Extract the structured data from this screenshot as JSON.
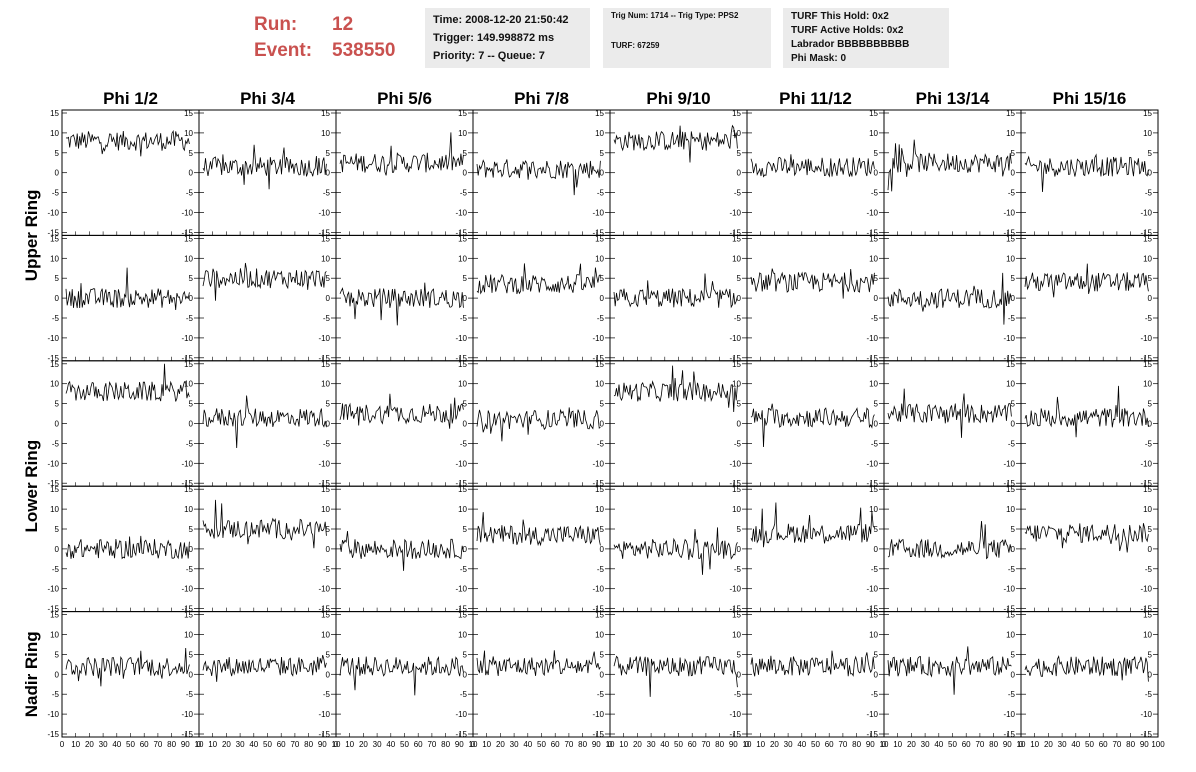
{
  "header": {
    "run_label": "Run:",
    "run_value": "12",
    "event_label": "Event:",
    "event_value": "538550",
    "time": "Time: 2008-12-20 21:50:42",
    "trigger": "Trigger: 149.998872 ms",
    "priority": "Priority: 7 -- Queue: 7",
    "trig_num": "Trig Num: 1714 -- Trig Type: PPS2",
    "turf": "TURF: 67259",
    "turf_this_hold": "TURF This Hold: 0x2",
    "turf_active_holds": "TURF Active Holds: 0x2",
    "labrador": "Labrador BBBBBBBBBB",
    "phi_mask": "Phi Mask: 0"
  },
  "colors": {
    "header_red": "#c9514f",
    "box_bg": "#ebebeb",
    "trace": "#000000"
  },
  "chart_data": {
    "type": "line",
    "columns": [
      "Phi 1/2",
      "Phi 3/4",
      "Phi 5/6",
      "Phi 7/8",
      "Phi 9/10",
      "Phi 11/12",
      "Phi 13/14",
      "Phi 15/16"
    ],
    "ring_labels": [
      "Upper Ring",
      "Lower Ring",
      "Nadir Ring"
    ],
    "xlim": [
      0,
      100
    ],
    "x_ticks": [
      "0",
      "10",
      "20",
      "30",
      "40",
      "50",
      "60",
      "70",
      "80",
      "90",
      "10",
      "0"
    ],
    "ylim": [
      -15,
      15
    ],
    "y_ticks": [
      "15",
      "10",
      "5",
      "0",
      "-5",
      "-10",
      "-15"
    ],
    "samples_per_trace": 100,
    "rows": [
      {
        "ring": "Upper Ring",
        "trace_baselines": [
          8,
          1.5,
          2.5,
          1,
          8,
          1.5,
          2.5,
          1.5
        ]
      },
      {
        "ring": "Upper Ring",
        "trace_baselines": [
          0,
          5,
          0,
          3.5,
          0,
          4,
          0,
          4
        ]
      },
      {
        "ring": "Lower Ring",
        "trace_baselines": [
          8,
          1.5,
          2.5,
          1,
          8,
          1.5,
          2.5,
          1.5
        ]
      },
      {
        "ring": "Lower Ring",
        "trace_baselines": [
          0,
          5,
          0,
          3.5,
          0,
          4,
          0,
          4
        ]
      },
      {
        "ring": "Nadir Ring",
        "trace_baselines": [
          2,
          2,
          2,
          2,
          2,
          2,
          2,
          2
        ]
      }
    ],
    "trace_noise": 2.5
  }
}
